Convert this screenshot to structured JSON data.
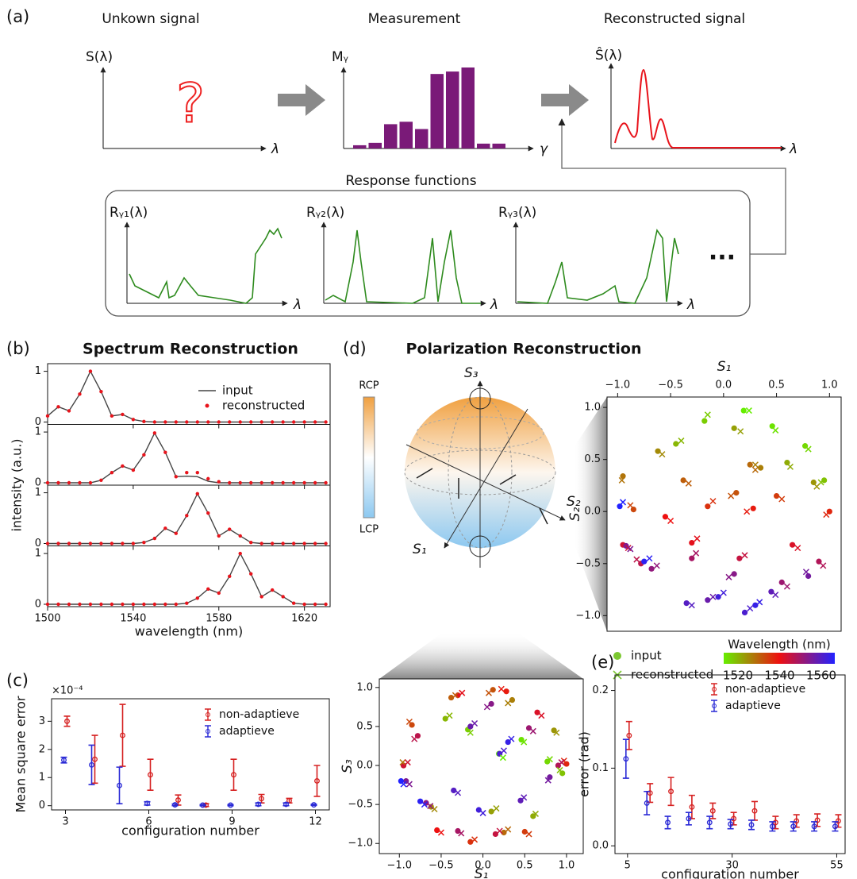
{
  "figure": {
    "labels": [
      "(a)",
      "(b)",
      "(c)",
      "(d)",
      "(e)"
    ],
    "diagram": {
      "titles": [
        "Unkown signal",
        "Measurement",
        "Reconstructed signal"
      ],
      "signal_y": "S(λ)",
      "signal_x": "λ",
      "question": "?",
      "recon_y": "Ŝ(λ)",
      "recon_x": "λ",
      "response_title": "Response functions",
      "responses": [
        "Rᵧ₁(λ)",
        "Rᵧ₂(λ)",
        "Rᵧ₃(λ)"
      ],
      "response_x": "λ",
      "ellipsis": "..."
    },
    "sphere": {
      "title": "Polarization Reconstruction",
      "axes": [
        "S₃",
        "S₂",
        "S₁"
      ],
      "colorbar": [
        "RCP",
        "LCP"
      ]
    }
  },
  "chart_data": [
    {
      "type": "bar",
      "ylabel": "Mᵧ",
      "xlabel": "γ",
      "color": "#7a1a78",
      "categories": [
        null,
        null,
        null,
        null,
        null,
        null,
        null,
        null,
        null,
        null
      ],
      "values": [
        0.04,
        0.07,
        0.3,
        0.33,
        0.24,
        0.92,
        0.95,
        1.0,
        0.06,
        0.06
      ]
    },
    {
      "type": "line",
      "title": "Spectrum Reconstruction",
      "xlabel": "wavelength (nm)",
      "ylabel": "intensity (a.u.)",
      "x": [
        1500,
        1505,
        1510,
        1515,
        1520,
        1525,
        1530,
        1535,
        1540,
        1545,
        1550,
        1555,
        1560,
        1565,
        1570,
        1575,
        1580,
        1585,
        1590,
        1595,
        1600,
        1605,
        1610,
        1615,
        1620,
        1625,
        1630
      ],
      "xlim": [
        1500,
        1632
      ],
      "xticks": [
        1500,
        1540,
        1580,
        1620
      ],
      "ylim": [
        0,
        1.15
      ],
      "yticks": [
        0,
        1
      ],
      "series": [
        {
          "name": "input",
          "color": "#444444",
          "values": [
            [
              0.12,
              0.3,
              0.22,
              0.55,
              1.0,
              0.6,
              0.12,
              0.15,
              0.05,
              0.01,
              0,
              0,
              0,
              0,
              0,
              0,
              0,
              0,
              0,
              0,
              0,
              0,
              0,
              0,
              0,
              0,
              0
            ],
            [
              0,
              0,
              0,
              0,
              0,
              0.05,
              0.2,
              0.33,
              0.25,
              0.55,
              0.98,
              0.6,
              0.12,
              0.13,
              0.12,
              0.03,
              0,
              0,
              0,
              0,
              0,
              0,
              0,
              0,
              0,
              0,
              0
            ],
            [
              0,
              0,
              0,
              0,
              0,
              0,
              0,
              0,
              0,
              0.02,
              0.1,
              0.3,
              0.2,
              0.55,
              0.98,
              0.6,
              0.15,
              0.28,
              0.15,
              0.02,
              0,
              0,
              0,
              0,
              0,
              0,
              0
            ],
            [
              0,
              0,
              0,
              0,
              0,
              0,
              0,
              0,
              0,
              0,
              0,
              0,
              0,
              0.02,
              0.12,
              0.3,
              0.22,
              0.55,
              1.0,
              0.6,
              0.15,
              0.28,
              0.15,
              0.02,
              0,
              0,
              0
            ]
          ]
        },
        {
          "name": "reconstructed",
          "color": "#e8141c",
          "values": [
            [
              0.12,
              0.3,
              0.22,
              0.55,
              1.0,
              0.6,
              0.12,
              0.15,
              0.05,
              0.01,
              0,
              0,
              0,
              0,
              0,
              0,
              0,
              0,
              0,
              0,
              0,
              0,
              0,
              0,
              0,
              0,
              0
            ],
            [
              0,
              0,
              0,
              0,
              0,
              0.05,
              0.2,
              0.33,
              0.25,
              0.55,
              0.98,
              0.6,
              0.12,
              0.2,
              0.2,
              0.08,
              0.02,
              0,
              0,
              0,
              0,
              0,
              0,
              0,
              0,
              0,
              0
            ],
            [
              0,
              0,
              0,
              0,
              0,
              0,
              0,
              0,
              0,
              0.02,
              0.1,
              0.3,
              0.2,
              0.55,
              0.98,
              0.6,
              0.15,
              0.28,
              0.15,
              0.02,
              0,
              0,
              0,
              0,
              0,
              0,
              0
            ],
            [
              0,
              0,
              0,
              0,
              0,
              0,
              0,
              0,
              0,
              0,
              0,
              0,
              0,
              0.02,
              0.12,
              0.3,
              0.22,
              0.55,
              1.0,
              0.6,
              0.15,
              0.28,
              0.15,
              0.02,
              0,
              0,
              0
            ]
          ]
        }
      ]
    },
    {
      "type": "errorbar",
      "ylabel": "Mean square error",
      "xlabel": "configuration number",
      "multiplier": "×10⁻⁴",
      "x": [
        3,
        4,
        5,
        6,
        7,
        8,
        9,
        10,
        11,
        12
      ],
      "xlim": [
        2.5,
        12.5
      ],
      "xticks": [
        3,
        6,
        9,
        12
      ],
      "ylim": [
        -0.15,
        3.8
      ],
      "yticks": [
        0,
        1,
        2,
        3
      ],
      "legend": "upper right",
      "series": [
        {
          "name": "non-adaptieve",
          "color": "#d62020",
          "values": [
            3.0,
            1.65,
            2.5,
            1.1,
            0.2,
            0.02,
            1.1,
            0.25,
            0.18,
            0.88
          ],
          "errors": [
            0.18,
            0.85,
            1.1,
            0.55,
            0.18,
            0.05,
            0.55,
            0.15,
            0.08,
            0.55
          ]
        },
        {
          "name": "adaptieve",
          "color": "#2a2ad6",
          "values": [
            1.62,
            1.45,
            0.72,
            0.08,
            0.03,
            0.02,
            0.02,
            0.05,
            0.05,
            0.03
          ],
          "errors": [
            0.1,
            0.7,
            0.65,
            0.06,
            0.03,
            0.02,
            0.02,
            0.05,
            0.05,
            0.02
          ]
        }
      ]
    },
    {
      "type": "polarization",
      "wavelength": [
        1520,
        1521,
        1522,
        1523,
        1524,
        1525,
        1526,
        1527,
        1528,
        1529,
        1530,
        1531,
        1532,
        1533,
        1534,
        1535,
        1536,
        1537,
        1538,
        1539,
        1540,
        1541,
        1542,
        1543,
        1544,
        1545,
        1546,
        1547,
        1548,
        1549,
        1550,
        1551,
        1552,
        1553,
        1554,
        1555,
        1556,
        1557,
        1558,
        1559,
        1560
      ],
      "series": [
        {
          "name": "input",
          "s1": [
            0.19,
            0.46,
            0.77,
            -0.18,
            0.95,
            -0.45,
            0.6,
            0.1,
            0.85,
            -0.62,
            0.35,
            -0.95,
            0.25,
            -0.38,
            0.12,
            -0.85,
            0.5,
            -0.15,
            1.0,
            0.28,
            -0.55,
            -0.3,
            0.65,
            -0.95,
            0.15,
            -0.78,
            0.9,
            -0.3,
            0.55,
            -0.68,
            0.1,
            -0.92,
            0.8,
            -0.15,
            0.45,
            -0.35,
            0.2,
            -0.05,
            0.3,
            -0.75,
            -0.98
          ],
          "s2": [
            0.97,
            0.82,
            0.63,
            0.87,
            0.3,
            0.65,
            0.47,
            0.8,
            0.28,
            0.58,
            0.42,
            0.34,
            0.45,
            0.3,
            0.18,
            0.02,
            0.15,
            0.05,
            0.0,
            0.03,
            -0.05,
            -0.3,
            -0.32,
            -0.32,
            -0.45,
            -0.5,
            -0.48,
            -0.45,
            -0.68,
            -0.55,
            -0.6,
            -0.33,
            -0.62,
            -0.85,
            -0.77,
            -0.88,
            -0.97,
            -0.82,
            -0.9,
            -0.48,
            0.05
          ],
          "s3": [
            0.15,
            0.33,
            0.05,
            0.46,
            -0.1,
            0.6,
            -0.65,
            -0.59,
            0.45,
            -0.53,
            0.84,
            0.0,
            -0.86,
            0.87,
            0.97,
            0.52,
            -0.85,
            -0.98,
            0.02,
            0.95,
            -0.83,
            0.9,
            0.68,
            0.0,
            -0.88,
            0.38,
            0.0,
            -0.84,
            0.48,
            -0.48,
            0.79,
            -0.2,
            -0.15,
            0.5,
            -0.45,
            -0.32,
            0.15,
            -0.57,
            0.3,
            -0.46,
            -0.2
          ]
        },
        {
          "name": "reconstructed",
          "s1": [
            0.24,
            0.49,
            0.8,
            -0.15,
            0.92,
            -0.4,
            0.63,
            0.16,
            0.88,
            -0.58,
            0.3,
            -0.96,
            0.3,
            -0.33,
            0.07,
            -0.88,
            0.55,
            -0.1,
            0.97,
            0.22,
            -0.5,
            -0.25,
            0.7,
            -0.9,
            0.2,
            -0.82,
            0.94,
            -0.26,
            0.6,
            -0.63,
            0.05,
            -0.88,
            0.78,
            -0.1,
            0.49,
            -0.3,
            0.25,
            0.0,
            0.34,
            -0.7,
            -0.95
          ],
          "s2": [
            0.97,
            0.78,
            0.6,
            0.93,
            0.28,
            0.68,
            0.43,
            0.77,
            0.24,
            0.55,
            0.45,
            0.3,
            0.4,
            0.27,
            0.15,
            0.06,
            0.12,
            0.1,
            -0.03,
            0.0,
            -0.09,
            -0.26,
            -0.35,
            -0.35,
            -0.42,
            -0.46,
            -0.52,
            -0.4,
            -0.72,
            -0.52,
            -0.63,
            -0.36,
            -0.58,
            -0.82,
            -0.8,
            -0.9,
            -0.93,
            -0.78,
            -0.87,
            -0.45,
            0.09
          ],
          "s3": [
            0.1,
            0.3,
            0.08,
            0.42,
            -0.06,
            0.64,
            -0.62,
            -0.55,
            0.42,
            -0.56,
            0.8,
            0.04,
            -0.82,
            0.9,
            0.93,
            0.56,
            -0.88,
            -0.95,
            0.06,
            0.98,
            -0.86,
            0.93,
            0.64,
            0.04,
            -0.84,
            0.34,
            0.04,
            -0.87,
            0.44,
            -0.52,
            0.75,
            -0.24,
            -0.19,
            0.54,
            -0.41,
            -0.35,
            0.19,
            -0.61,
            0.34,
            -0.5,
            -0.24
          ]
        }
      ],
      "plots": [
        {
          "xlabel": "S₁",
          "ylabel": "S₂",
          "y": "s2",
          "xlim": [
            -1.1,
            1.11
          ],
          "ylim": [
            -1.15,
            1.1
          ]
        },
        {
          "xlabel": "S₁",
          "ylabel": "S₃",
          "y": "s3",
          "xlim": [
            -1.24,
            1.2
          ],
          "ylim": [
            -1.13,
            1.11
          ]
        }
      ],
      "ticks": [
        {
          "value": -1,
          "label": "−1.0"
        },
        {
          "value": -0.5,
          "label": "−0.5"
        },
        {
          "value": 0,
          "label": "0.0"
        },
        {
          "value": 0.5,
          "label": "0.5"
        },
        {
          "value": 1,
          "label": "1.0"
        }
      ],
      "colorbar": {
        "label": "Wavelength (nm)",
        "colormap": [
          "#66ee00",
          "#ee1010",
          "#2222ff"
        ],
        "clim": [
          1520,
          1560
        ],
        "ticks": [
          1520,
          1540,
          1560
        ]
      }
    },
    {
      "type": "errorbar",
      "ylabel": "error (rad)",
      "xlabel": "configuration number",
      "x": [
        5,
        10,
        15,
        20,
        25,
        30,
        35,
        40,
        45,
        50,
        55
      ],
      "xlim": [
        2,
        57
      ],
      "xticks": [
        5,
        30,
        55
      ],
      "ylim": [
        -0.01,
        0.22
      ],
      "yticks": [
        {
          "value": 0,
          "label": "0.0"
        },
        {
          "value": 0.1,
          "label": "0.1"
        },
        {
          "value": 0.2,
          "label": "0.2"
        }
      ],
      "legend": "upper right",
      "series": [
        {
          "name": "non-adaptieve",
          "color": "#d62020",
          "values": [
            0.142,
            0.068,
            0.07,
            0.05,
            0.045,
            0.035,
            0.045,
            0.03,
            0.032,
            0.033,
            0.032
          ],
          "errors": [
            0.018,
            0.012,
            0.018,
            0.015,
            0.01,
            0.008,
            0.012,
            0.008,
            0.008,
            0.008,
            0.008
          ]
        },
        {
          "name": "adaptieve",
          "color": "#2a2ad6",
          "values": [
            0.112,
            0.055,
            0.03,
            0.035,
            0.03,
            0.028,
            0.027,
            0.025,
            0.025,
            0.025,
            0.025
          ],
          "errors": [
            0.025,
            0.015,
            0.008,
            0.008,
            0.008,
            0.006,
            0.006,
            0.006,
            0.006,
            0.006,
            0.006
          ]
        }
      ]
    }
  ]
}
